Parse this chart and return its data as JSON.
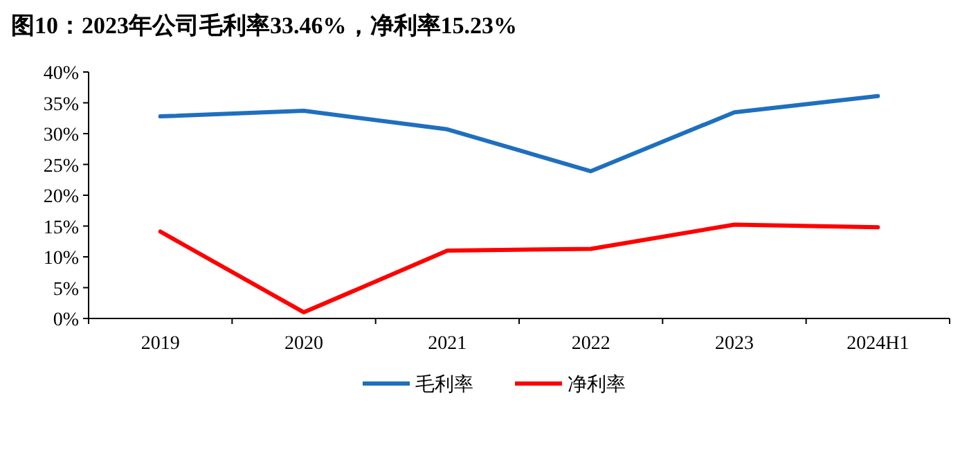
{
  "chart_data": {
    "type": "line",
    "title": "图10：2023年公司毛利率33.46%，净利率15.23%",
    "categories": [
      "2019",
      "2020",
      "2021",
      "2022",
      "2023",
      "2024H1"
    ],
    "series": [
      {
        "name": "毛利率",
        "color": "#1f6fbf",
        "values": [
          32.8,
          33.7,
          30.7,
          23.9,
          33.46,
          36.1
        ]
      },
      {
        "name": "净利率",
        "color": "#ff0000",
        "values": [
          14.1,
          1.0,
          11.0,
          11.3,
          15.23,
          14.8
        ]
      }
    ],
    "ylim": [
      0,
      40
    ],
    "yticks": [
      {
        "value": 0,
        "label": "0%"
      },
      {
        "value": 5,
        "label": "5%"
      },
      {
        "value": 10,
        "label": "10%"
      },
      {
        "value": 15,
        "label": "15%"
      },
      {
        "value": 20,
        "label": "20%"
      },
      {
        "value": 25,
        "label": "25%"
      },
      {
        "value": 30,
        "label": "30%"
      },
      {
        "value": 35,
        "label": "35%"
      },
      {
        "value": 40,
        "label": "40%"
      }
    ],
    "legend": "bottom",
    "grid": false,
    "marker": "none",
    "line_style": "solid"
  }
}
